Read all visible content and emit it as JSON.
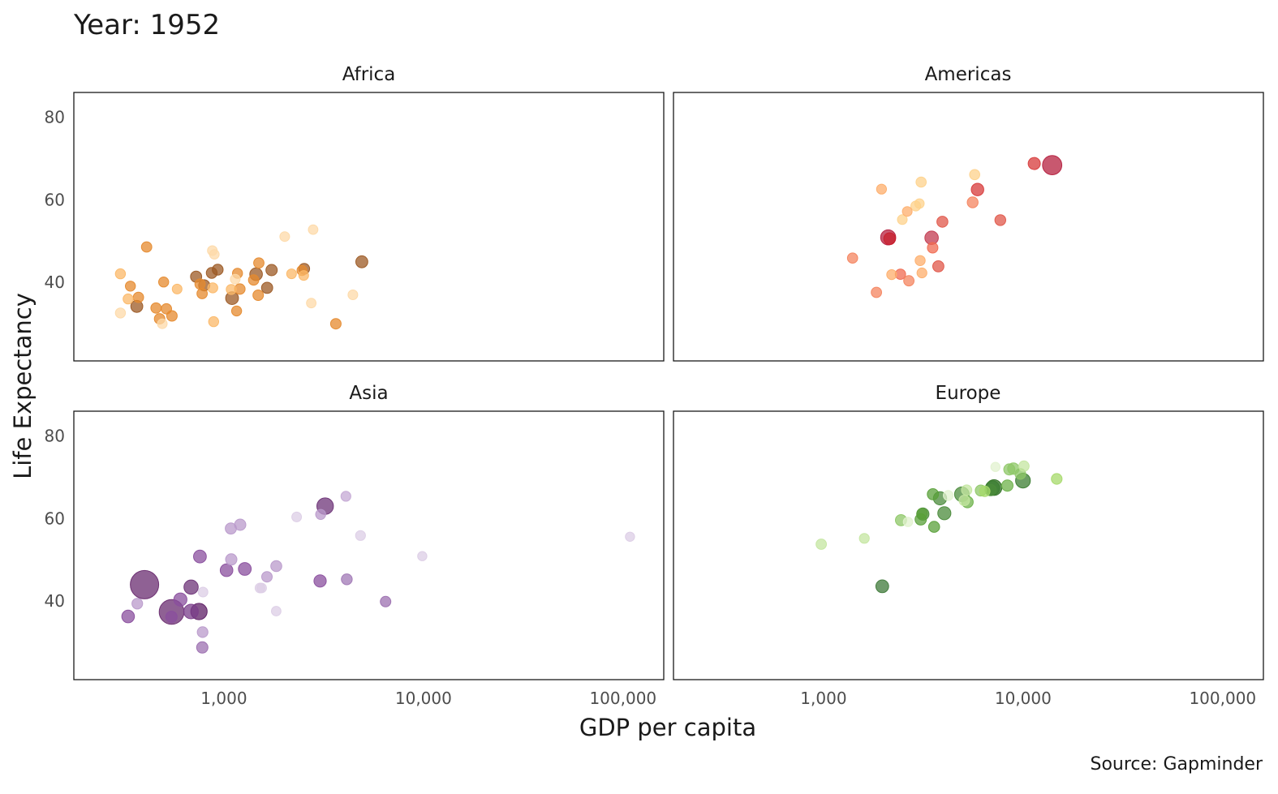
{
  "chart_data": {
    "type": "scatter",
    "title": "Year: 1952",
    "xlabel": "GDP per capita",
    "ylabel": "Life Expectancy",
    "caption": "Source: Gapminder",
    "x_scale": "log10",
    "xlim": [
      177,
      160000
    ],
    "ylim": [
      21,
      86
    ],
    "grid": false,
    "x_ticks": [
      1000,
      10000,
      100000
    ],
    "x_tick_labels": [
      "1,000",
      "10,000",
      "100,000"
    ],
    "y_ticks": [
      40,
      60,
      80
    ],
    "y_tick_labels": [
      "40",
      "60",
      "80"
    ],
    "size_variable": "pop (millions)",
    "facets": [
      {
        "name": "Africa",
        "points": [
          {
            "gdp": 410,
            "lifeExp": 48.6,
            "pop": 3,
            "color": "#e58a2e"
          },
          {
            "gdp": 303,
            "lifeExp": 42.1,
            "pop": 2,
            "color": "#fbb868"
          },
          {
            "gdp": 340,
            "lifeExp": 39.1,
            "pop": 2,
            "color": "#e58a2e"
          },
          {
            "gdp": 331,
            "lifeExp": 36.0,
            "pop": 2,
            "color": "#fbb868"
          },
          {
            "gdp": 373,
            "lifeExp": 36.4,
            "pop": 3,
            "color": "#e58a2e"
          },
          {
            "gdp": 366,
            "lifeExp": 34.2,
            "pop": 14,
            "color": "#9c5a24"
          },
          {
            "gdp": 303,
            "lifeExp": 32.6,
            "pop": 2,
            "color": "#fdd9a8"
          },
          {
            "gdp": 457,
            "lifeExp": 33.8,
            "pop": 3,
            "color": "#e58a2e"
          },
          {
            "gdp": 515,
            "lifeExp": 33.6,
            "pop": 3,
            "color": "#e58a2e"
          },
          {
            "gdp": 476,
            "lifeExp": 31.2,
            "pop": 4,
            "color": "#e58a2e"
          },
          {
            "gdp": 491,
            "lifeExp": 30.0,
            "pop": 1,
            "color": "#fdd9a8"
          },
          {
            "gdp": 549,
            "lifeExp": 31.9,
            "pop": 4,
            "color": "#e58a2e"
          },
          {
            "gdp": 499,
            "lifeExp": 40.1,
            "pop": 2,
            "color": "#e58a2e"
          },
          {
            "gdp": 583,
            "lifeExp": 38.4,
            "pop": 1,
            "color": "#fbb868"
          },
          {
            "gdp": 875,
            "lifeExp": 47.7,
            "pop": 1,
            "color": "#fdd9a8"
          },
          {
            "gdp": 896,
            "lifeExp": 46.8,
            "pop": 0.5,
            "color": "#fdd9a8"
          },
          {
            "gdp": 726,
            "lifeExp": 41.4,
            "pop": 8,
            "color": "#9c5a24"
          },
          {
            "gdp": 869,
            "lifeExp": 42.3,
            "pop": 6,
            "color": "#9c5a24"
          },
          {
            "gdp": 931,
            "lifeExp": 43.1,
            "pop": 6,
            "color": "#9c5a24"
          },
          {
            "gdp": 760,
            "lifeExp": 39.6,
            "pop": 3,
            "color": "#e58a2e"
          },
          {
            "gdp": 797,
            "lifeExp": 39.3,
            "pop": 8,
            "color": "#9c5a24"
          },
          {
            "gdp": 778,
            "lifeExp": 37.3,
            "pop": 3,
            "color": "#e58a2e"
          },
          {
            "gdp": 879,
            "lifeExp": 38.7,
            "pop": 2,
            "color": "#fbb868"
          },
          {
            "gdp": 888,
            "lifeExp": 30.5,
            "pop": 2,
            "color": "#fbb868"
          },
          {
            "gdp": 1170,
            "lifeExp": 42.2,
            "pop": 2,
            "color": "#e58a2e"
          },
          {
            "gdp": 1140,
            "lifeExp": 40.8,
            "pop": 1,
            "color": "#fdd9a8"
          },
          {
            "gdp": 1202,
            "lifeExp": 38.4,
            "pop": 4,
            "color": "#e58a2e"
          },
          {
            "gdp": 1088,
            "lifeExp": 38.3,
            "pop": 2,
            "color": "#fbb868"
          },
          {
            "gdp": 1099,
            "lifeExp": 36.2,
            "pop": 22,
            "color": "#9c5a24"
          },
          {
            "gdp": 1158,
            "lifeExp": 33.1,
            "pop": 2,
            "color": "#e58a2e"
          },
          {
            "gdp": 1449,
            "lifeExp": 42.0,
            "pop": 20,
            "color": "#9c5a24"
          },
          {
            "gdp": 1409,
            "lifeExp": 40.6,
            "pop": 3,
            "color": "#e58a2e"
          },
          {
            "gdp": 1496,
            "lifeExp": 44.7,
            "pop": 3,
            "color": "#e58a2e"
          },
          {
            "gdp": 1733,
            "lifeExp": 43.0,
            "pop": 9,
            "color": "#9c5a24"
          },
          {
            "gdp": 1647,
            "lifeExp": 38.7,
            "pop": 8,
            "color": "#9c5a24"
          },
          {
            "gdp": 1486,
            "lifeExp": 36.9,
            "pop": 4,
            "color": "#e58a2e"
          },
          {
            "gdp": 2018,
            "lifeExp": 51.1,
            "pop": 1,
            "color": "#fdd9a8"
          },
          {
            "gdp": 2800,
            "lifeExp": 52.8,
            "pop": 0.5,
            "color": "#fdd9a8"
          },
          {
            "gdp": 2182,
            "lifeExp": 42.1,
            "pop": 1,
            "color": "#fbb868"
          },
          {
            "gdp": 2525,
            "lifeExp": 43.3,
            "pop": 6,
            "color": "#9c5a24"
          },
          {
            "gdp": 2462,
            "lifeExp": 42.9,
            "pop": 2,
            "color": "#e58a2e"
          },
          {
            "gdp": 2511,
            "lifeExp": 41.7,
            "pop": 1,
            "color": "#fbb868"
          },
          {
            "gdp": 2740,
            "lifeExp": 35.0,
            "pop": 0.5,
            "color": "#fdd9a8"
          },
          {
            "gdp": 4430,
            "lifeExp": 37.0,
            "pop": 1,
            "color": "#fdd9a8"
          },
          {
            "gdp": 4910,
            "lifeExp": 45.0,
            "pop": 14,
            "color": "#9c5a24"
          },
          {
            "gdp": 3640,
            "lifeExp": 30.0,
            "pop": 4,
            "color": "#e58a2e"
          }
        ]
      },
      {
        "name": "Americas",
        "points": [
          {
            "gdp": 5911,
            "lifeExp": 62.5,
            "pop": 17.9,
            "color": "#d73a3a"
          },
          {
            "gdp": 2677,
            "lifeExp": 40.4,
            "pop": 2.9,
            "color": "#f4845f"
          },
          {
            "gdp": 2109,
            "lifeExp": 50.9,
            "pop": 56.6,
            "color": "#b5203f"
          },
          {
            "gdp": 11367,
            "lifeExp": 68.8,
            "pop": 14.8,
            "color": "#d73a3a"
          },
          {
            "gdp": 3940,
            "lifeExp": 54.7,
            "pop": 6.4,
            "color": "#e0574a"
          },
          {
            "gdp": 2144,
            "lifeExp": 50.6,
            "pop": 12.4,
            "color": "#c8202e"
          },
          {
            "gdp": 2627,
            "lifeExp": 57.2,
            "pop": 0.93,
            "color": "#fdae6b"
          },
          {
            "gdp": 5587,
            "lifeExp": 59.4,
            "pop": 6.0,
            "color": "#f4845f"
          },
          {
            "gdp": 1398,
            "lifeExp": 45.9,
            "pop": 2.5,
            "color": "#f4845f"
          },
          {
            "gdp": 3522,
            "lifeExp": 48.4,
            "pop": 3.5,
            "color": "#f06a50"
          },
          {
            "gdp": 3048,
            "lifeExp": 45.3,
            "pop": 2.0,
            "color": "#fdae6b"
          },
          {
            "gdp": 2428,
            "lifeExp": 42.0,
            "pop": 3.1,
            "color": "#f06a50"
          },
          {
            "gdp": 1840,
            "lifeExp": 37.6,
            "pop": 3.2,
            "color": "#f4845f"
          },
          {
            "gdp": 2195,
            "lifeExp": 41.9,
            "pop": 1.5,
            "color": "#fdae6b"
          },
          {
            "gdp": 2899,
            "lifeExp": 58.5,
            "pop": 1.4,
            "color": "#fed28b"
          },
          {
            "gdp": 3478,
            "lifeExp": 50.8,
            "pop": 30.1,
            "color": "#c23a4f"
          },
          {
            "gdp": 3112,
            "lifeExp": 42.3,
            "pop": 1.2,
            "color": "#fdae6b"
          },
          {
            "gdp": 2480,
            "lifeExp": 55.2,
            "pop": 0.94,
            "color": "#fed28b"
          },
          {
            "gdp": 1953,
            "lifeExp": 62.6,
            "pop": 1.6,
            "color": "#fdae6b"
          },
          {
            "gdp": 3759,
            "lifeExp": 43.9,
            "pop": 8.0,
            "color": "#e0574a"
          },
          {
            "gdp": 3082,
            "lifeExp": 64.3,
            "pop": 2.2,
            "color": "#fed28b"
          },
          {
            "gdp": 3023,
            "lifeExp": 59.1,
            "pop": 0.66,
            "color": "#fed28b"
          },
          {
            "gdp": 13990,
            "lifeExp": 68.4,
            "pop": 157.6,
            "color": "#b5203f"
          },
          {
            "gdp": 5717,
            "lifeExp": 66.1,
            "pop": 2.25,
            "color": "#fed28b"
          },
          {
            "gdp": 7690,
            "lifeExp": 55.1,
            "pop": 5.4,
            "color": "#e0574a"
          }
        ]
      },
      {
        "name": "Asia",
        "points": [
          {
            "gdp": 779,
            "lifeExp": 28.8,
            "pop": 8.4,
            "color": "#9c70b0"
          },
          {
            "gdp": 9867,
            "lifeExp": 50.9,
            "pop": 0.12,
            "color": "#dccde6"
          },
          {
            "gdp": 684,
            "lifeExp": 37.5,
            "pop": 46.9,
            "color": "#7a3d8a"
          },
          {
            "gdp": 368,
            "lifeExp": 39.4,
            "pop": 4.7,
            "color": "#b99acb"
          },
          {
            "gdp": 400,
            "lifeExp": 44.0,
            "pop": 556,
            "color": "#6a2c70"
          },
          {
            "gdp": 3054,
            "lifeExp": 61.0,
            "pop": 2.1,
            "color": "#b99acb"
          },
          {
            "gdp": 547,
            "lifeExp": 37.4,
            "pop": 372,
            "color": "#6a2c70"
          },
          {
            "gdp": 750,
            "lifeExp": 37.5,
            "pop": 82,
            "color": "#5e1f66"
          },
          {
            "gdp": 3035,
            "lifeExp": 44.9,
            "pop": 17.3,
            "color": "#8a4f9e"
          },
          {
            "gdp": 4129,
            "lifeExp": 45.3,
            "pop": 5.4,
            "color": "#a078b5"
          },
          {
            "gdp": 4087,
            "lifeExp": 65.4,
            "pop": 1.6,
            "color": "#c4a8d4"
          },
          {
            "gdp": 3217,
            "lifeExp": 63.0,
            "pop": 86.5,
            "color": "#6e3478"
          },
          {
            "gdp": 1547,
            "lifeExp": 43.2,
            "pop": 0.6,
            "color": "#dccde6"
          },
          {
            "gdp": 1088,
            "lifeExp": 50.1,
            "pop": 8.9,
            "color": "#b99acb"
          },
          {
            "gdp": 1031,
            "lifeExp": 47.5,
            "pop": 20.9,
            "color": "#8a4f9e"
          },
          {
            "gdp": 108382,
            "lifeExp": 55.6,
            "pop": 0.16,
            "color": "#dccde6"
          },
          {
            "gdp": 4835,
            "lifeExp": 55.9,
            "pop": 1.4,
            "color": "#dccde6"
          },
          {
            "gdp": 1831,
            "lifeExp": 48.5,
            "pop": 6.7,
            "color": "#b99acb"
          },
          {
            "gdp": 786,
            "lifeExp": 42.2,
            "pop": 0.8,
            "color": "#dccde6"
          },
          {
            "gdp": 331,
            "lifeExp": 36.3,
            "pop": 20.1,
            "color": "#8a4f9e"
          },
          {
            "gdp": 546,
            "lifeExp": 36.2,
            "pop": 9.2,
            "color": "#8a4f9e"
          },
          {
            "gdp": 1828,
            "lifeExp": 37.6,
            "pop": 0.5,
            "color": "#dccde6"
          },
          {
            "gdp": 685,
            "lifeExp": 43.4,
            "pop": 41.3,
            "color": "#6e3478"
          },
          {
            "gdp": 1273,
            "lifeExp": 47.8,
            "pop": 22.4,
            "color": "#8a4f9e"
          },
          {
            "gdp": 6460,
            "lifeExp": 39.9,
            "pop": 4.0,
            "color": "#9c70b0"
          },
          {
            "gdp": 2315,
            "lifeExp": 60.4,
            "pop": 1.1,
            "color": "#dccde6"
          },
          {
            "gdp": 1083,
            "lifeExp": 57.6,
            "pop": 8.0,
            "color": "#b99acb"
          },
          {
            "gdp": 1644,
            "lifeExp": 45.9,
            "pop": 3.7,
            "color": "#b99acb"
          },
          {
            "gdp": 1207,
            "lifeExp": 58.5,
            "pop": 8.55,
            "color": "#b99acb"
          },
          {
            "gdp": 758,
            "lifeExp": 50.8,
            "pop": 21.3,
            "color": "#8a4f9e"
          },
          {
            "gdp": 605,
            "lifeExp": 40.4,
            "pop": 26.2,
            "color": "#8a4f9e"
          },
          {
            "gdp": 1516,
            "lifeExp": 43.2,
            "pop": 1.0,
            "color": "#dccde6"
          },
          {
            "gdp": 782,
            "lifeExp": 32.5,
            "pop": 5.0,
            "color": "#b99acb"
          }
        ]
      },
      {
        "name": "Europe",
        "points": [
          {
            "gdp": 1601,
            "lifeExp": 55.2,
            "pop": 1.3,
            "color": "#c4e6a0"
          },
          {
            "gdp": 6137,
            "lifeExp": 66.8,
            "pop": 6.9,
            "color": "#8ec767"
          },
          {
            "gdp": 8343,
            "lifeExp": 68.0,
            "pop": 8.7,
            "color": "#6db24a"
          },
          {
            "gdp": 974,
            "lifeExp": 53.8,
            "pop": 2.8,
            "color": "#c4e6a0"
          },
          {
            "gdp": 2444,
            "lifeExp": 59.6,
            "pop": 7.3,
            "color": "#8ec767"
          },
          {
            "gdp": 3119,
            "lifeExp": 61.2,
            "pop": 3.9,
            "color": "#5aa03a"
          },
          {
            "gdp": 6876,
            "lifeExp": 66.9,
            "pop": 9.1,
            "color": "#4b8b3b"
          },
          {
            "gdp": 9692,
            "lifeExp": 70.8,
            "pop": 4.3,
            "color": "#8ec767"
          },
          {
            "gdp": 6425,
            "lifeExp": 66.6,
            "pop": 4.1,
            "color": "#a6d96a"
          },
          {
            "gdp": 7030,
            "lifeExp": 67.4,
            "pop": 42.5,
            "color": "#3b7d30"
          },
          {
            "gdp": 7144,
            "lifeExp": 67.5,
            "pop": 69.1,
            "color": "#2d6e22"
          },
          {
            "gdp": 3531,
            "lifeExp": 65.9,
            "pop": 7.7,
            "color": "#5aa03a"
          },
          {
            "gdp": 5264,
            "lifeExp": 64.0,
            "pop": 9.5,
            "color": "#6db24a"
          },
          {
            "gdp": 7268,
            "lifeExp": 72.5,
            "pop": 0.15,
            "color": "#e2f2cf"
          },
          {
            "gdp": 5211,
            "lifeExp": 66.9,
            "pop": 2.95,
            "color": "#c4e6a0"
          },
          {
            "gdp": 4931,
            "lifeExp": 65.9,
            "pop": 47.7,
            "color": "#4b8b3b"
          },
          {
            "gdp": 2648,
            "lifeExp": 59.2,
            "pop": 0.41,
            "color": "#e2f2cf"
          },
          {
            "gdp": 8942,
            "lifeExp": 72.1,
            "pop": 10.4,
            "color": "#8ec767"
          },
          {
            "gdp": 10095,
            "lifeExp": 72.7,
            "pop": 3.3,
            "color": "#c4e6a0"
          },
          {
            "gdp": 4029,
            "lifeExp": 61.3,
            "pop": 25.7,
            "color": "#4b8b3b"
          },
          {
            "gdp": 3068,
            "lifeExp": 59.8,
            "pop": 8.5,
            "color": "#5aa03a"
          },
          {
            "gdp": 3145,
            "lifeExp": 61.1,
            "pop": 16.6,
            "color": "#4b8b3b"
          },
          {
            "gdp": 3581,
            "lifeExp": 58.0,
            "pop": 6.9,
            "color": "#5aa03a"
          },
          {
            "gdp": 5074,
            "lifeExp": 64.4,
            "pop": 3.6,
            "color": "#c4e6a0"
          },
          {
            "gdp": 4215,
            "lifeExp": 65.6,
            "pop": 1.5,
            "color": "#e2f2cf"
          },
          {
            "gdp": 3834,
            "lifeExp": 64.9,
            "pop": 28.5,
            "color": "#4b8b3b"
          },
          {
            "gdp": 8528,
            "lifeExp": 71.9,
            "pop": 7.1,
            "color": "#8ec767"
          },
          {
            "gdp": 14734,
            "lifeExp": 69.6,
            "pop": 4.8,
            "color": "#a6d96a"
          },
          {
            "gdp": 1969,
            "lifeExp": 43.6,
            "pop": 22.2,
            "color": "#3f7a3a"
          },
          {
            "gdp": 9980,
            "lifeExp": 69.2,
            "pop": 50.4,
            "color": "#3b7d30"
          }
        ]
      }
    ]
  }
}
